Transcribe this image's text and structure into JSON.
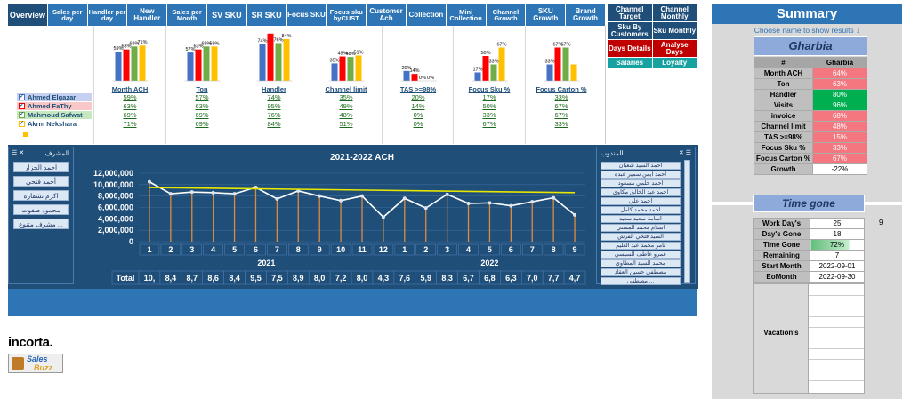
{
  "nav": {
    "tabs": [
      "Overview",
      "Sales per day",
      "Handler per day",
      "New Handler",
      "Sales per Month",
      "SV SKU",
      "SR SKU",
      "Focus SKU",
      "Focus sku byCUST",
      "Customer Ach",
      "Collection",
      "Mini Collection",
      "Channel Growth",
      "SKU Growth",
      "Brand Growth"
    ],
    "right": [
      {
        "label": "Channel Target",
        "color": "#1f4e79"
      },
      {
        "label": "Channel Monthly",
        "color": "#1f4e79"
      },
      {
        "label": "Sku By Customers",
        "color": "#1f4e79"
      },
      {
        "label": "Sku Monthly",
        "color": "#1f4e79"
      },
      {
        "label": "Days Details",
        "color": "#c00000"
      },
      {
        "label": "Analyse Days",
        "color": "#c00000"
      },
      {
        "label": "Salaries",
        "color": "#17a2a2"
      },
      {
        "label": "Loyalty",
        "color": "#17a2a2"
      }
    ]
  },
  "mini": {
    "people": [
      {
        "name": "Ahmed Elgazar",
        "color": "#4472c4"
      },
      {
        "name": "Ahmed FaThy",
        "color": "#ff0000"
      },
      {
        "name": "Mahmoud Safwat",
        "color": "#70ad47"
      },
      {
        "name": "Akrm Nekshara",
        "color": "#ffc000"
      }
    ],
    "metrics": [
      {
        "name": "Month ACH",
        "vals": [
          59,
          63,
          69,
          71
        ],
        "labels": [
          "59%",
          "63%",
          "69%",
          "71%"
        ],
        "cells": [
          "59%",
          "63%",
          "69%",
          "71%"
        ]
      },
      {
        "name": "Ton",
        "vals": [
          57,
          63,
          69,
          69
        ],
        "labels": [
          "57%",
          "63%",
          "69%",
          "69%"
        ],
        "cells": [
          "57%",
          "63%",
          "69%",
          "69%"
        ]
      },
      {
        "name": "Handler",
        "vals": [
          74,
          95,
          76,
          84
        ],
        "labels": [
          "74%",
          "",
          "76%",
          "84%"
        ],
        "cells": [
          "74%",
          "95%",
          "76%",
          "84%"
        ]
      },
      {
        "name": "Channel limit",
        "vals": [
          35,
          49,
          48,
          51
        ],
        "labels": [
          "35%",
          "49%",
          "48%",
          "51%"
        ],
        "cells": [
          "35%",
          "49%",
          "48%",
          "51%"
        ]
      },
      {
        "name": "TAS >=98%",
        "vals": [
          20,
          14,
          0,
          0
        ],
        "labels": [
          "20%",
          "14%",
          "0%",
          "0%"
        ],
        "cells": [
          "20%",
          "14%",
          "0%",
          "0%"
        ]
      },
      {
        "name": "Focus Sku %",
        "vals": [
          17,
          50,
          33,
          67
        ],
        "labels": [
          "17%",
          "50%",
          "33%",
          "67%"
        ],
        "cells": [
          "17%",
          "50%",
          "33%",
          "67%"
        ]
      },
      {
        "name": "Focus Carton %",
        "vals": [
          33,
          67,
          67,
          33
        ],
        "labels": [
          "33%",
          "67%",
          "67%",
          ""
        ],
        "cells": [
          "33%",
          "67%",
          "67%",
          "33%"
        ]
      }
    ]
  },
  "supervisor_panel": {
    "title": "المشرف",
    "items": [
      "احمد الجزار",
      "أحمد فتحي",
      "اكرم نشقارة",
      "محمود صفوت",
      "مشرف متنوع ..."
    ]
  },
  "rep_panel": {
    "title": "المندوب",
    "items": [
      "احمد السيد شعبان",
      "احمد ايمن سمير عبده",
      "احمد حلمي مسعود",
      "احمد عبد الخالق مكاوي",
      "احمد علي",
      "احمد محمد كامل",
      "أسامة سعيد سعيد",
      "اسلام محمد المسني",
      "السيد فتحي القرش",
      "تامر محمد عبد العليم",
      "عمرو عاطف السيسي",
      "محمد السيد المطاوي",
      "مصطفى حسين العقاد",
      "مصطفى ..."
    ]
  },
  "chart_data": {
    "type": "line",
    "title": "2021-2022 ACH",
    "categories": [
      "1",
      "2",
      "3",
      "4",
      "5",
      "6",
      "7",
      "8",
      "9",
      "10",
      "11",
      "12",
      "1",
      "2",
      "3",
      "4",
      "5",
      "6",
      "7",
      "8",
      "9"
    ],
    "groups": [
      {
        "label": "2021",
        "count": 12
      },
      {
        "label": "2022",
        "count": 9
      }
    ],
    "yticks": [
      "0",
      "2,000,000",
      "4,000,000",
      "6,000,000",
      "8,000,000",
      "10,000,000",
      "12,000,000"
    ],
    "ylim": [
      0,
      12000000
    ],
    "series": [
      {
        "values": [
          10500000,
          8400000,
          8700000,
          8600000,
          8400000,
          9500000,
          7500000,
          8900000,
          8000000,
          7200000,
          8000000,
          4300000,
          7600000,
          5900000,
          8300000,
          6700000,
          6800000,
          6300000,
          7000000,
          7700000,
          4700000
        ]
      }
    ],
    "trend": [
      9500000,
      8600000
    ],
    "table_label": "Total",
    "table": [
      "10,",
      "8,4",
      "8,7",
      "8,6",
      "8,4",
      "9,5",
      "7,5",
      "8,9",
      "8,0",
      "7,2",
      "8,0",
      "4,3",
      "7,6",
      "5,9",
      "8,3",
      "6,7",
      "6,8",
      "6,3",
      "7,0",
      "7,7",
      "4,7"
    ]
  },
  "summary": {
    "title": "Summary",
    "hint": "Choose name to show results ↓",
    "region": "Gharbia",
    "head": [
      "#",
      "Gharbia"
    ],
    "rows": [
      {
        "k": "Month ACH",
        "v": "64%",
        "c": "#f4777f"
      },
      {
        "k": "Ton",
        "v": "63%",
        "c": "#f4777f"
      },
      {
        "k": "Handler",
        "v": "80%",
        "c": "#00b050"
      },
      {
        "k": "Visits",
        "v": "96%",
        "c": "#00b050"
      },
      {
        "k": "invoice",
        "v": "68%",
        "c": "#f4777f"
      },
      {
        "k": "Channel limit",
        "v": "48%",
        "c": "#f4777f"
      },
      {
        "k": "TAS >=98%",
        "v": "15%",
        "c": "#f4777f"
      },
      {
        "k": "Focus Sku %",
        "v": "33%",
        "c": "#f4777f"
      },
      {
        "k": "Focus Carton %",
        "v": "67%",
        "c": "#f4777f"
      },
      {
        "k": "Growth",
        "v": "-22%",
        "c": "#ffffff"
      }
    ]
  },
  "timegone": {
    "title": "Time gone",
    "rows": [
      {
        "k": "Work Day's",
        "v": "25"
      },
      {
        "k": "Day's Gone",
        "v": "18"
      },
      {
        "k": "Time Gone",
        "v": "72%"
      },
      {
        "k": "Remaining",
        "v": "7"
      },
      {
        "k": "Start Month",
        "v": "2022-09-01"
      },
      {
        "k": "EoMonth",
        "v": "2022-09-30"
      }
    ],
    "time_gone_fraction": 0.72,
    "side_value": "9",
    "vacations": "Vacation's"
  },
  "logos": {
    "incorta": "incorta.",
    "salesbuzz_1": "Sales",
    "salesbuzz_2": "Buzz"
  }
}
